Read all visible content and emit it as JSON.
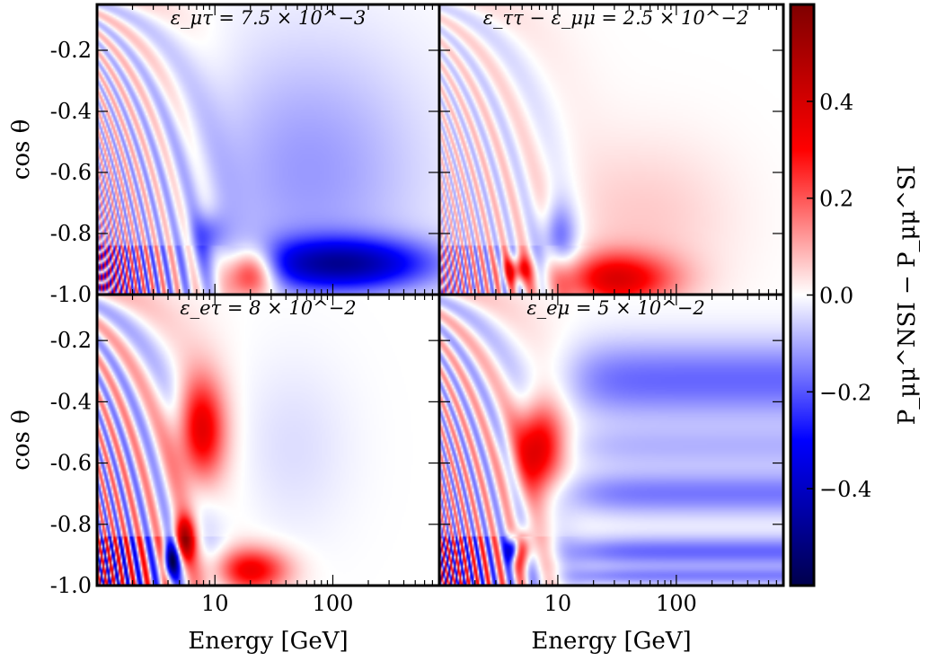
{
  "chart_data": {
    "type": "heatmap",
    "colorbar": {
      "label": "P_μμ^NSI − P_μμ^SI",
      "range": [
        -0.6,
        0.6
      ],
      "ticks": [
        0.4,
        0.2,
        0.0,
        -0.2,
        -0.4
      ],
      "tick_labels": [
        "0.4",
        "0.2",
        "0.0",
        "−0.2",
        "−0.4"
      ],
      "colormap": "seismic",
      "colors": [
        "#00004c",
        "#0000ff",
        "#ffffff",
        "#ff0000",
        "#7f0000"
      ]
    },
    "x_axis": {
      "label": "Energy [GeV]",
      "scale": "log",
      "range": [
        1,
        800
      ],
      "major_ticks": [
        10,
        100
      ],
      "tick_labels": [
        "10",
        "100"
      ]
    },
    "y_axis": {
      "label": "cos θ",
      "range": [
        -1.0,
        -0.05
      ],
      "ticks": [
        -0.2,
        -0.4,
        -0.6,
        -0.8,
        -1.0
      ],
      "tick_labels": [
        "-0.2",
        "-0.4",
        "-0.6",
        "-0.8",
        "-1.0"
      ]
    },
    "panels": [
      {
        "title": "ε_μτ = 7.5 × 10^−3",
        "pattern": {
          "osc_amp": 0.22,
          "osc_decay": 8,
          "osc_freq": 1.0,
          "blobs": [
            {
              "E": 20,
              "c": -0.93,
              "sE": 0.15,
              "sC": 0.06,
              "amp": 0.4
            },
            {
              "E": 120,
              "c": -0.9,
              "sE": 0.55,
              "sC": 0.06,
              "amp": -0.42
            },
            {
              "E": 60,
              "c": -0.6,
              "sE": 0.7,
              "sC": 0.3,
              "amp": -0.12
            },
            {
              "E": 9,
              "c": -0.8,
              "sE": 0.1,
              "sC": 0.05,
              "amp": -0.15
            }
          ],
          "bands": []
        }
      },
      {
        "title": "ε_ττ − ε_μμ = 2.5 × 10^−2",
        "pattern": {
          "osc_amp": 0.15,
          "osc_decay": 6,
          "osc_freq": 0.85,
          "blobs": [
            {
              "E": 30,
              "c": -0.95,
              "sE": 0.35,
              "sC": 0.06,
              "amp": 0.35
            },
            {
              "E": 60,
              "c": -0.75,
              "sE": 0.5,
              "sC": 0.18,
              "amp": 0.06
            },
            {
              "E": 10,
              "c": -0.82,
              "sE": 0.1,
              "sC": 0.08,
              "amp": -0.2
            },
            {
              "E": 4.5,
              "c": -0.92,
              "sE": 0.08,
              "sC": 0.03,
              "amp": 0.3
            }
          ],
          "bands": []
        }
      },
      {
        "title": "ε_eτ = 8 × 10^−2",
        "pattern": {
          "osc_amp": 0.28,
          "osc_decay": 9,
          "osc_freq": 0.55,
          "blobs": [
            {
              "E": 7.5,
              "c": -0.5,
              "sE": 0.14,
              "sC": 0.12,
              "amp": 0.38
            },
            {
              "E": 20,
              "c": -0.95,
              "sE": 0.22,
              "sC": 0.05,
              "amp": 0.33
            },
            {
              "E": 5.5,
              "c": -0.85,
              "sE": 0.06,
              "sC": 0.05,
              "amp": 0.45
            },
            {
              "E": 4.3,
              "c": -0.92,
              "sE": 0.05,
              "sC": 0.04,
              "amp": -0.5
            },
            {
              "E": 45,
              "c": -0.55,
              "sE": 0.35,
              "sC": 0.2,
              "amp": -0.04
            }
          ],
          "bands": []
        }
      },
      {
        "title": "ε_eμ = 5 × 10^−2",
        "pattern": {
          "osc_amp": 0.26,
          "osc_decay": 9,
          "osc_freq": 0.7,
          "blobs": [
            {
              "E": 7,
              "c": -0.55,
              "sE": 0.14,
              "sC": 0.1,
              "amp": 0.4
            },
            {
              "E": 5,
              "c": -0.88,
              "sE": 0.06,
              "sC": 0.04,
              "amp": 0.35
            },
            {
              "E": 4.2,
              "c": -0.88,
              "sE": 0.04,
              "sC": 0.03,
              "amp": -0.55
            }
          ],
          "bands": [
            {
              "E0": 14,
              "c": -0.33,
              "w": 0.09,
              "amp": -0.18
            },
            {
              "E0": 14,
              "c": -0.7,
              "w": 0.05,
              "amp": -0.16
            },
            {
              "E0": 14,
              "c": -0.89,
              "w": 0.035,
              "amp": -0.18
            },
            {
              "E0": 14,
              "c": -0.97,
              "w": 0.02,
              "amp": -0.14
            },
            {
              "E0": 14,
              "c": -0.55,
              "w": 0.05,
              "amp": -0.08
            }
          ]
        }
      }
    ]
  }
}
